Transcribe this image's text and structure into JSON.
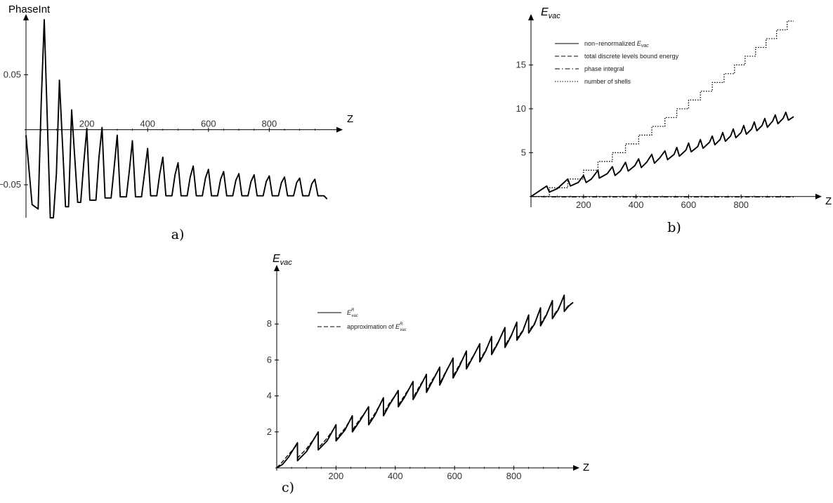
{
  "chart_data": [
    {
      "id": "a",
      "type": "line",
      "caption": "a)",
      "ylabel": "PhaseInt",
      "xlabel": "Z",
      "xlim": [
        0,
        1000
      ],
      "ylim": [
        -0.08,
        0.1
      ],
      "xticks": [
        200,
        400,
        600,
        800
      ],
      "yticks": [
        -0.05,
        0.05
      ],
      "ytick_labels": [
        "−0.05",
        "0.05"
      ],
      "series": [
        {
          "style": "solid",
          "x": [
            0,
            20,
            40,
            50,
            60,
            80,
            90,
            100,
            110,
            130,
            140,
            150,
            170,
            180,
            190,
            200,
            210,
            230,
            240,
            250,
            260,
            280,
            290,
            300,
            310,
            330,
            340,
            350,
            360,
            380,
            390,
            400,
            410,
            430,
            440,
            450,
            460,
            480,
            490,
            500,
            510,
            530,
            540,
            550,
            560,
            580,
            590,
            600,
            610,
            630,
            640,
            650,
            660,
            680,
            690,
            700,
            710,
            730,
            740,
            750,
            760,
            780,
            790,
            800,
            810,
            830,
            840,
            850,
            860,
            880,
            890,
            900,
            910,
            930,
            940,
            950,
            960,
            980,
            990
          ],
          "y": [
            -0.005,
            -0.068,
            -0.072,
            0.025,
            0.1,
            -0.08,
            -0.08,
            -0.04,
            0.045,
            -0.07,
            -0.07,
            0.018,
            -0.066,
            -0.066,
            -0.03,
            0.001,
            -0.064,
            -0.064,
            -0.025,
            0.002,
            -0.062,
            -0.062,
            -0.034,
            -0.005,
            -0.061,
            -0.061,
            -0.037,
            -0.01,
            -0.061,
            -0.061,
            -0.039,
            -0.017,
            -0.06,
            -0.06,
            -0.04,
            -0.025,
            -0.06,
            -0.06,
            -0.041,
            -0.03,
            -0.06,
            -0.06,
            -0.043,
            -0.033,
            -0.06,
            -0.06,
            -0.044,
            -0.036,
            -0.06,
            -0.06,
            -0.045,
            -0.038,
            -0.06,
            -0.06,
            -0.046,
            -0.04,
            -0.06,
            -0.06,
            -0.047,
            -0.041,
            -0.06,
            -0.06,
            -0.047,
            -0.042,
            -0.06,
            -0.06,
            -0.048,
            -0.043,
            -0.06,
            -0.06,
            -0.048,
            -0.044,
            -0.06,
            -0.06,
            -0.049,
            -0.045,
            -0.06,
            -0.06,
            -0.063
          ]
        }
      ]
    },
    {
      "id": "b",
      "type": "line",
      "caption": "b)",
      "ylabel": "E",
      "ylabel_sub": "vac",
      "xlabel": "Z",
      "xlim": [
        0,
        1000
      ],
      "ylim": [
        -0.5,
        20
      ],
      "xticks": [
        200,
        400,
        600,
        800
      ],
      "yticks": [
        5,
        10,
        15
      ],
      "legend": [
        {
          "label": "non−renormalized ",
          "label_italic": "E",
          "label_sub": "vac",
          "style": "solid"
        },
        {
          "label": "total discrete levels bound energy",
          "label_italic": "",
          "label_sub": "",
          "style": "dashed"
        },
        {
          "label": "phase integral",
          "label_italic": "",
          "label_sub": "",
          "style": "dashdot"
        },
        {
          "label": "number of shells",
          "label_italic": "",
          "label_sub": "",
          "style": "dotted"
        }
      ],
      "series": [
        {
          "style": "solid",
          "x": [
            0,
            30,
            60,
            70,
            100,
            140,
            150,
            180,
            200,
            210,
            230,
            255,
            260,
            290,
            310,
            320,
            340,
            360,
            370,
            395,
            410,
            420,
            440,
            460,
            470,
            490,
            510,
            520,
            545,
            555,
            565,
            590,
            600,
            610,
            635,
            645,
            655,
            680,
            690,
            700,
            720,
            730,
            740,
            760,
            770,
            780,
            800,
            810,
            820,
            840,
            850,
            860,
            880,
            890,
            900,
            920,
            930,
            940,
            960,
            970,
            980,
            1000
          ],
          "y": [
            0,
            0.6,
            1.2,
            0.5,
            0.9,
            2.0,
            1.2,
            1.6,
            2.4,
            1.6,
            2.0,
            3.0,
            2.1,
            2.6,
            3.4,
            2.4,
            2.9,
            3.9,
            2.9,
            3.5,
            4.3,
            3.3,
            3.9,
            4.8,
            3.8,
            4.4,
            5.2,
            4.2,
            4.8,
            5.6,
            4.6,
            5.3,
            6.1,
            5.1,
            5.7,
            6.5,
            5.5,
            6.2,
            6.9,
            5.9,
            6.5,
            7.3,
            6.3,
            6.9,
            7.7,
            6.7,
            7.3,
            8.1,
            7.1,
            7.7,
            8.5,
            7.5,
            8.1,
            8.9,
            7.9,
            8.6,
            9.3,
            8.3,
            8.9,
            9.6,
            8.7,
            9.1
          ]
        },
        {
          "style": "dashed",
          "x": [
            0,
            30,
            60,
            70,
            100,
            140,
            150,
            180,
            200,
            210,
            230,
            255,
            260,
            290,
            310,
            320,
            340,
            360,
            370,
            395,
            410,
            420,
            440,
            460,
            470,
            490,
            510,
            520,
            545,
            555,
            565,
            590,
            600,
            610,
            635,
            645,
            655,
            680,
            690,
            700,
            720,
            730,
            740,
            760,
            770,
            780,
            800,
            810,
            820,
            840,
            850,
            860,
            880,
            890,
            900,
            920,
            930,
            940,
            960,
            970,
            980,
            1000
          ],
          "y": [
            0,
            0.6,
            1.2,
            0.5,
            0.9,
            2.0,
            1.2,
            1.6,
            2.4,
            1.6,
            2.0,
            3.0,
            2.1,
            2.6,
            3.4,
            2.4,
            2.9,
            3.9,
            2.9,
            3.5,
            4.3,
            3.3,
            3.9,
            4.8,
            3.8,
            4.4,
            5.2,
            4.2,
            4.8,
            5.6,
            4.6,
            5.3,
            6.1,
            5.1,
            5.7,
            6.5,
            5.5,
            6.2,
            6.9,
            5.9,
            6.5,
            7.3,
            6.3,
            6.9,
            7.7,
            6.7,
            7.3,
            8.1,
            7.1,
            7.7,
            8.5,
            7.5,
            8.1,
            8.9,
            7.9,
            8.6,
            9.3,
            8.3,
            8.9,
            9.6,
            8.7,
            9.1
          ]
        },
        {
          "style": "dashdot",
          "x": [
            0,
            100,
            200,
            300,
            400,
            500,
            600,
            700,
            800,
            900,
            1000
          ],
          "y": [
            0,
            -0.05,
            -0.05,
            -0.05,
            -0.05,
            -0.05,
            -0.05,
            -0.05,
            -0.05,
            -0.05,
            -0.05
          ]
        },
        {
          "style": "dotted",
          "step": true,
          "x": [
            0,
            70,
            140,
            200,
            255,
            310,
            360,
            410,
            460,
            510,
            555,
            600,
            645,
            690,
            735,
            775,
            815,
            855,
            895,
            935,
            975,
            1000
          ],
          "y": [
            0,
            1,
            2,
            3,
            4,
            5,
            6,
            7,
            8,
            9,
            10,
            11,
            12,
            13,
            14,
            15,
            16,
            17,
            18,
            19,
            20,
            20
          ]
        }
      ]
    },
    {
      "id": "c",
      "type": "line",
      "caption": "c)",
      "ylabel": "E",
      "ylabel_sub": "vac",
      "xlabel": "Z",
      "xlim": [
        0,
        1000
      ],
      "ylim": [
        0,
        10
      ],
      "xticks": [
        200,
        400,
        600,
        800
      ],
      "yticks": [
        2,
        4,
        6,
        8
      ],
      "legend": [
        {
          "label": "",
          "label_italic": "E",
          "label_sub": "vac",
          "label_sup": "R",
          "prefix": "",
          "style": "solid"
        },
        {
          "label": "",
          "label_italic": "E",
          "label_sub": "vac",
          "label_sup": "R",
          "prefix": "approximation of ",
          "style": "dashed"
        }
      ],
      "series": [
        {
          "style": "solid",
          "x": [
            0,
            20,
            40,
            70,
            70.1,
            100,
            140,
            140.1,
            170,
            200,
            200.1,
            230,
            255,
            255.1,
            280,
            310,
            310.1,
            330,
            360,
            360.1,
            380,
            410,
            410.1,
            430,
            460,
            460.1,
            480,
            505,
            505.1,
            525,
            550,
            550.1,
            570,
            595,
            595.1,
            615,
            640,
            640.1,
            660,
            685,
            685.1,
            705,
            725,
            725.1,
            745,
            770,
            770.1,
            790,
            810,
            810.1,
            830,
            850,
            850.1,
            870,
            890,
            890.1,
            910,
            930,
            930.1,
            950,
            970,
            970.1,
            985,
            1000
          ],
          "y": [
            0,
            0.2,
            0.6,
            1.4,
            0.4,
            0.9,
            2.0,
            1.0,
            1.5,
            2.4,
            1.5,
            2.1,
            2.9,
            2.0,
            2.6,
            3.4,
            2.4,
            2.9,
            3.9,
            2.9,
            3.5,
            4.3,
            3.4,
            3.9,
            4.8,
            3.8,
            4.4,
            5.2,
            4.2,
            4.8,
            5.6,
            4.6,
            5.3,
            6.1,
            5.0,
            5.6,
            6.5,
            5.5,
            6.1,
            6.9,
            5.9,
            6.5,
            7.3,
            6.3,
            6.9,
            7.8,
            6.7,
            7.3,
            8.1,
            7.1,
            7.6,
            8.5,
            7.5,
            8.0,
            8.9,
            7.9,
            8.5,
            9.3,
            8.3,
            8.8,
            9.6,
            8.7,
            9.0,
            9.2
          ]
        },
        {
          "style": "dashed",
          "x": [
            0,
            20,
            40,
            70,
            70.1,
            100,
            140,
            140.1,
            170,
            200,
            200.1,
            230,
            255,
            255.1,
            280,
            310,
            310.1,
            330,
            360,
            360.1,
            380,
            410,
            410.1,
            430,
            460,
            460.1,
            480,
            505,
            505.1,
            525,
            550,
            550.1,
            570,
            595,
            595.1,
            615,
            640,
            640.1,
            660,
            685,
            685.1,
            705,
            725,
            725.1,
            745,
            770,
            770.1,
            790,
            810,
            810.1,
            830,
            850,
            850.1,
            870,
            890,
            890.1,
            910,
            930,
            930.1,
            950,
            970,
            970.1,
            985,
            1000
          ],
          "y": [
            0,
            0.35,
            0.75,
            1.3,
            0.55,
            1.05,
            1.95,
            1.1,
            1.65,
            2.35,
            1.6,
            2.2,
            2.85,
            2.1,
            2.7,
            3.35,
            2.5,
            3.0,
            3.85,
            3.0,
            3.6,
            4.25,
            3.5,
            4.0,
            4.75,
            3.9,
            4.5,
            5.15,
            4.3,
            4.9,
            5.55,
            4.7,
            5.35,
            6.05,
            5.1,
            5.7,
            6.45,
            5.6,
            6.15,
            6.85,
            6.0,
            6.55,
            7.25,
            6.4,
            6.95,
            7.75,
            6.8,
            7.35,
            8.05,
            7.2,
            7.65,
            8.45,
            7.6,
            8.05,
            8.85,
            8.0,
            8.55,
            9.25,
            8.4,
            8.85,
            9.55,
            8.75,
            9.05,
            9.2
          ]
        }
      ]
    }
  ]
}
